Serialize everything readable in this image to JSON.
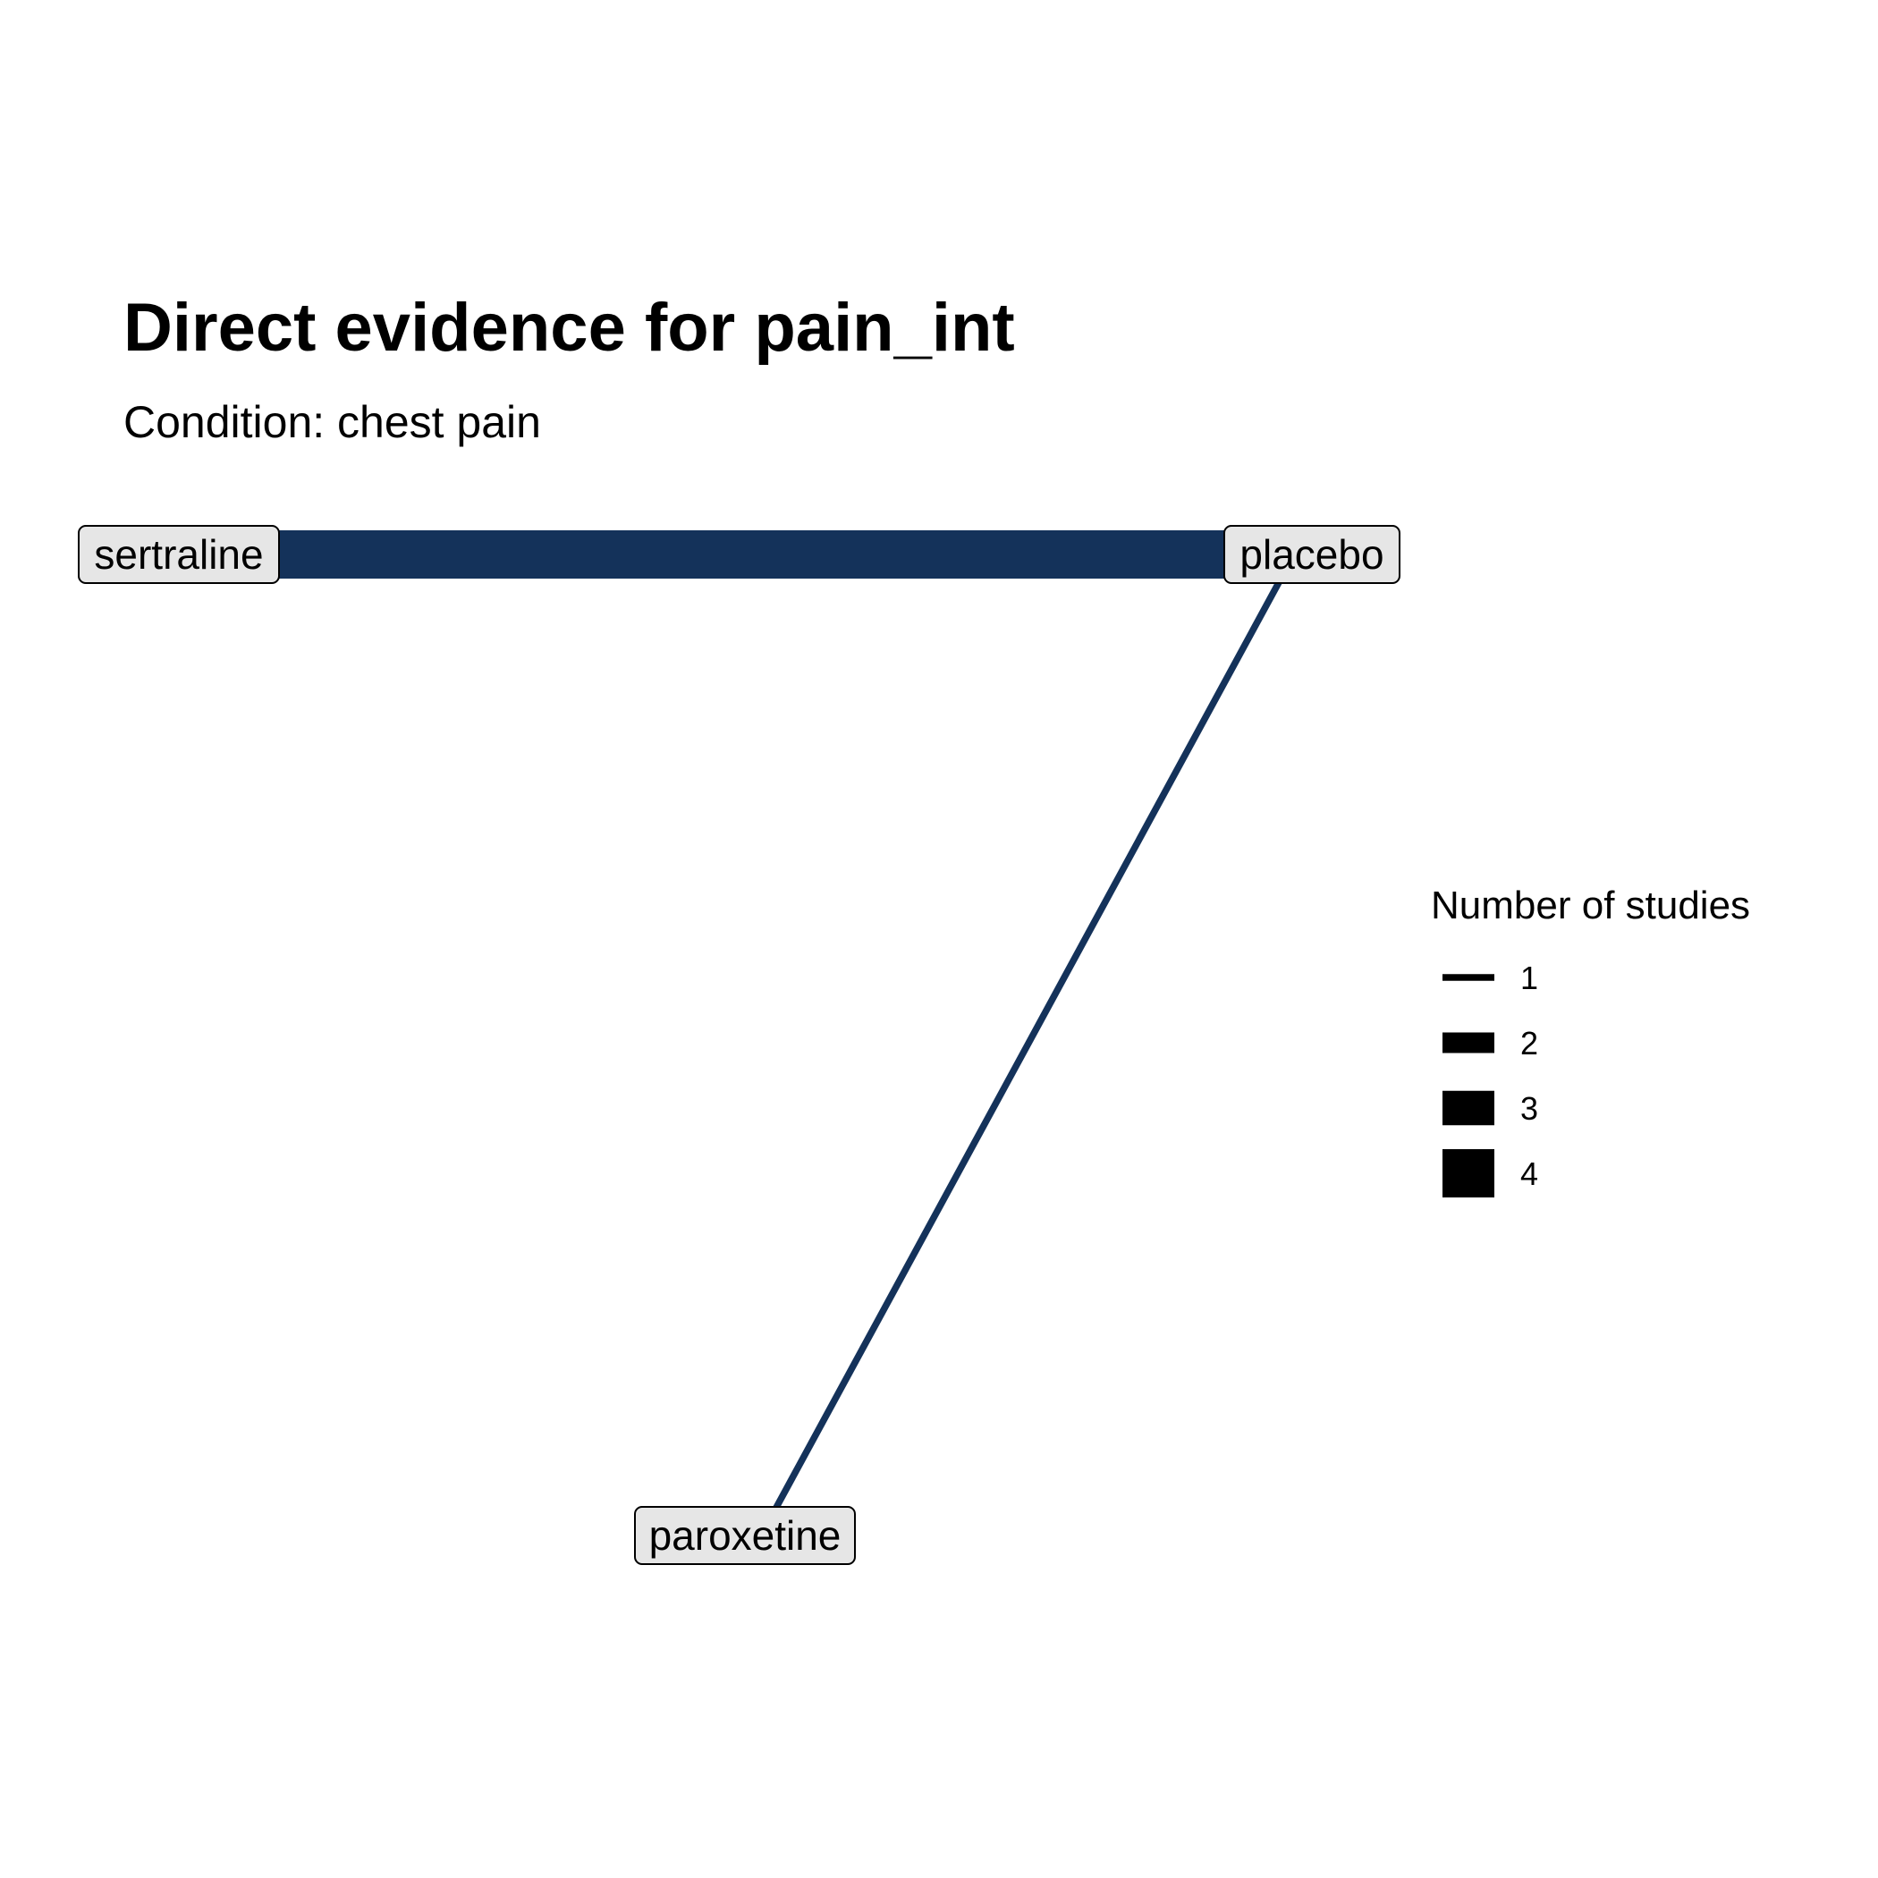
{
  "title": "Direct evidence for pain_int",
  "subtitle": "Condition: chest pain",
  "edge_color": "#14325a",
  "node_fill": "#e6e6e6",
  "nodes": [
    {
      "id": "sertraline",
      "label": "sertraline"
    },
    {
      "id": "placebo",
      "label": "placebo"
    },
    {
      "id": "paroxetine",
      "label": "paroxetine"
    }
  ],
  "edges": [
    {
      "from": "sertraline",
      "to": "placebo",
      "studies": 4
    },
    {
      "from": "placebo",
      "to": "paroxetine",
      "studies": 1
    }
  ],
  "legend": {
    "title": "Number of studies",
    "items": [
      {
        "label": "1",
        "studies": 1
      },
      {
        "label": "2",
        "studies": 2
      },
      {
        "label": "3",
        "studies": 3
      },
      {
        "label": "4",
        "studies": 4
      }
    ]
  }
}
